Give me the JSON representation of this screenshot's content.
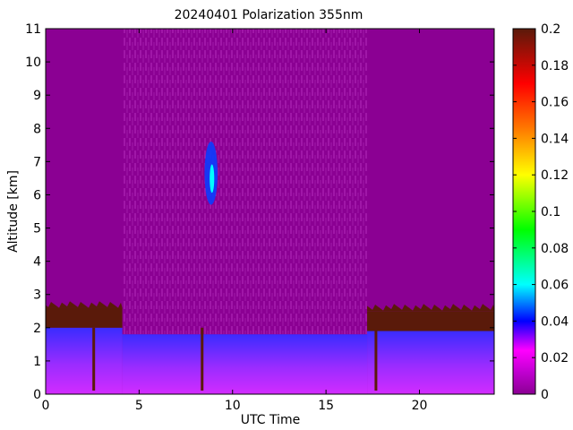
{
  "chart_data": {
    "type": "heatmap",
    "title": "20240401 Polarization 355nm",
    "xlabel": "UTC Time",
    "ylabel": "Altitude [km]",
    "xlim": [
      0,
      24
    ],
    "ylim": [
      0,
      11
    ],
    "xticks": [
      0,
      5,
      10,
      15,
      20
    ],
    "yticks": [
      0,
      1,
      2,
      3,
      4,
      5,
      6,
      7,
      8,
      9,
      10,
      11
    ],
    "colorbar": {
      "ticks": [
        0,
        0.02,
        0.04,
        0.06,
        0.08,
        0.1,
        0.12,
        0.14,
        0.16,
        0.18,
        0.2
      ],
      "tick_labels": [
        "0",
        "0.02",
        "0.04",
        "0.06",
        "0.08",
        "0.1",
        "0.12",
        "0.14",
        "0.16",
        "0.18",
        "0.2"
      ],
      "range": [
        0,
        0.2
      ],
      "colormap": [
        "#8b0093",
        "#ff00ff",
        "#0000ff",
        "#00ffff",
        "#00ff00",
        "#ffff00",
        "#ff8000",
        "#ff0000",
        "#5a1a0a"
      ]
    },
    "background_value": 0.01,
    "measurement_window": [
      4.1,
      17.2
    ],
    "regions": [
      {
        "kind": "boundary-layer",
        "x": [
          0,
          4.1
        ],
        "ymax": 2.0,
        "value": 0.03
      },
      {
        "kind": "residual-top",
        "x": [
          0,
          4.1
        ],
        "ymin": 2.0,
        "ymax": 2.6,
        "value": 0.2
      },
      {
        "kind": "boundary-layer",
        "x": [
          4.1,
          17.2
        ],
        "ymax": 1.8,
        "value": 0.035
      },
      {
        "kind": "boundary-layer",
        "x": [
          17.2,
          24
        ],
        "ymax": 1.9,
        "value": 0.035
      },
      {
        "kind": "residual-top",
        "x": [
          17.2,
          24
        ],
        "ymin": 1.9,
        "ymax": 2.5,
        "value": 0.2
      },
      {
        "kind": "cirrus",
        "x": [
          8.5,
          9.2
        ],
        "y": [
          5.7,
          7.6
        ],
        "value": 0.08
      }
    ]
  }
}
